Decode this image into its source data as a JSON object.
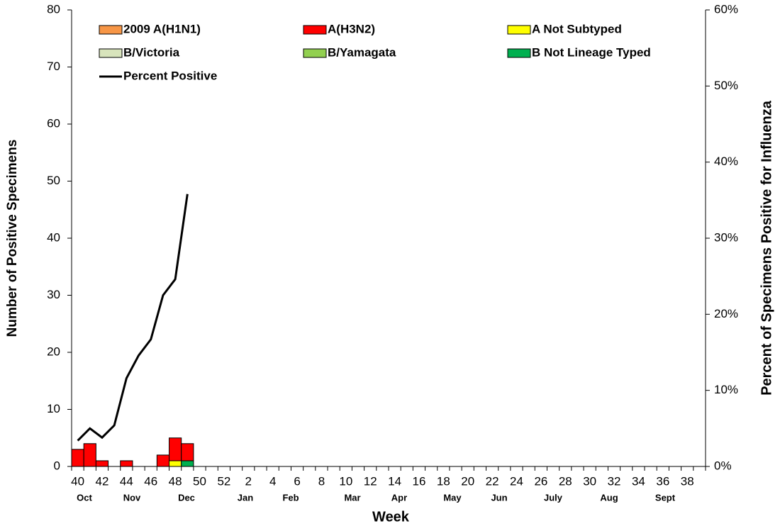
{
  "chart_data": {
    "type": "bar",
    "x_label": "Week",
    "y_label": "Number of Positive Specimens",
    "y2_label": "Percent of Specimens Positive for Influenza",
    "categories": [
      40,
      null,
      42,
      null,
      44,
      null,
      46,
      null,
      48,
      null,
      50,
      null,
      52,
      null,
      2,
      null,
      4,
      null,
      6,
      null,
      8,
      null,
      10,
      null,
      12,
      null,
      14,
      null,
      16,
      null,
      18,
      null,
      20,
      null,
      22,
      null,
      24,
      null,
      26,
      null,
      28,
      null,
      30,
      null,
      32,
      null,
      34,
      null,
      36,
      null,
      38,
      null
    ],
    "months": [
      "Oct",
      "Nov",
      "Dec",
      "Jan",
      "Feb",
      "Mar",
      "Apr",
      "May",
      "Jun",
      "July",
      "Aug",
      "Sept"
    ],
    "ylim": [
      0,
      80
    ],
    "yticks": [
      0,
      10,
      20,
      30,
      40,
      50,
      60,
      70,
      80
    ],
    "y2lim": [
      0,
      60
    ],
    "y2ticks": [
      {
        "value": 0,
        "label": "0%"
      },
      {
        "value": 10,
        "label": "10%"
      },
      {
        "value": 20,
        "label": "20%"
      },
      {
        "value": 30,
        "label": "30%"
      },
      {
        "value": 40,
        "label": "40%"
      },
      {
        "value": 50,
        "label": "50%"
      },
      {
        "value": 60,
        "label": "60%"
      }
    ],
    "series": [
      {
        "name": "2009 A(H1N1)",
        "color": "#f79646",
        "values": [
          0,
          0,
          0,
          0,
          0,
          0,
          0,
          0,
          0,
          0,
          null,
          null,
          null,
          null,
          null,
          null,
          null,
          null,
          null,
          null,
          null,
          null,
          null,
          null,
          null,
          null,
          null,
          null,
          null,
          null,
          null,
          null,
          null,
          null,
          null,
          null,
          null,
          null,
          null,
          null,
          null,
          null,
          null,
          null,
          null,
          null,
          null,
          null,
          null,
          null,
          null,
          null
        ]
      },
      {
        "name": "A(H3N2)",
        "color": "#ff0000",
        "values": [
          3,
          4,
          1,
          0,
          1,
          0,
          0,
          2,
          4,
          3,
          null,
          null,
          null,
          null,
          null,
          null,
          null,
          null,
          null,
          null,
          null,
          null,
          null,
          null,
          null,
          null,
          null,
          null,
          null,
          null,
          null,
          null,
          null,
          null,
          null,
          null,
          null,
          null,
          null,
          null,
          null,
          null,
          null,
          null,
          null,
          null,
          null,
          null,
          null,
          null,
          null,
          null
        ]
      },
      {
        "name": "A Not Subtyped",
        "color": "#ffff00",
        "values": [
          0,
          0,
          0,
          0,
          0,
          0,
          0,
          0,
          1,
          0,
          null,
          null,
          null,
          null,
          null,
          null,
          null,
          null,
          null,
          null,
          null,
          null,
          null,
          null,
          null,
          null,
          null,
          null,
          null,
          null,
          null,
          null,
          null,
          null,
          null,
          null,
          null,
          null,
          null,
          null,
          null,
          null,
          null,
          null,
          null,
          null,
          null,
          null,
          null,
          null,
          null,
          null
        ]
      },
      {
        "name": "B/Victoria",
        "color": "#d8e4bc",
        "values": [
          0,
          0,
          0,
          0,
          0,
          0,
          0,
          0,
          0,
          0,
          null,
          null,
          null,
          null,
          null,
          null,
          null,
          null,
          null,
          null,
          null,
          null,
          null,
          null,
          null,
          null,
          null,
          null,
          null,
          null,
          null,
          null,
          null,
          null,
          null,
          null,
          null,
          null,
          null,
          null,
          null,
          null,
          null,
          null,
          null,
          null,
          null,
          null,
          null,
          null,
          null,
          null
        ]
      },
      {
        "name": "B/Yamagata",
        "color": "#92d050",
        "values": [
          0,
          0,
          0,
          0,
          0,
          0,
          0,
          0,
          0,
          0,
          null,
          null,
          null,
          null,
          null,
          null,
          null,
          null,
          null,
          null,
          null,
          null,
          null,
          null,
          null,
          null,
          null,
          null,
          null,
          null,
          null,
          null,
          null,
          null,
          null,
          null,
          null,
          null,
          null,
          null,
          null,
          null,
          null,
          null,
          null,
          null,
          null,
          null,
          null,
          null,
          null,
          null
        ]
      },
      {
        "name": "B Not Lineage Typed",
        "color": "#00b050",
        "values": [
          0,
          0,
          0,
          0,
          0,
          0,
          0,
          0,
          0,
          1,
          null,
          null,
          null,
          null,
          null,
          null,
          null,
          null,
          null,
          null,
          null,
          null,
          null,
          null,
          null,
          null,
          null,
          null,
          null,
          null,
          null,
          null,
          null,
          null,
          null,
          null,
          null,
          null,
          null,
          null,
          null,
          null,
          null,
          null,
          null,
          null,
          null,
          null,
          null,
          null,
          null,
          null
        ]
      },
      {
        "name": "Percent Positive",
        "type": "line",
        "axis": "y2",
        "color": "#000000",
        "values": [
          3.4,
          5.0,
          3.8,
          5.4,
          11.6,
          14.6,
          16.7,
          22.5,
          24.6,
          35.8,
          null,
          null,
          null,
          null,
          null,
          null,
          null,
          null,
          null,
          null,
          null,
          null,
          null,
          null,
          null,
          null,
          null,
          null,
          null,
          null,
          null,
          null,
          null,
          null,
          null,
          null,
          null,
          null,
          null,
          null,
          null,
          null,
          null,
          null,
          null,
          null,
          null,
          null,
          null,
          null,
          null,
          null
        ]
      }
    ]
  }
}
